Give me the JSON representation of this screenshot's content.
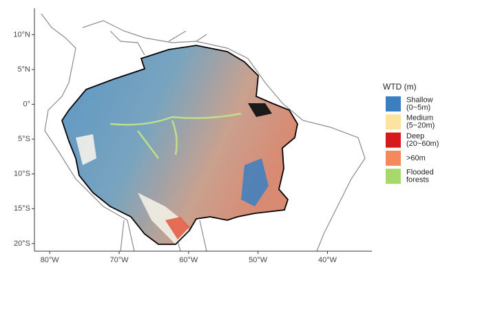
{
  "chart_data": {
    "type": "map",
    "xlim": [
      -82.2,
      -33.6
    ],
    "ylim": [
      -21.1,
      13.8
    ],
    "xticks": [
      {
        "value": -80,
        "label": "80°W"
      },
      {
        "value": -70,
        "label": "70°W"
      },
      {
        "value": -60,
        "label": "60°W"
      },
      {
        "value": -50,
        "label": "50°W"
      },
      {
        "value": -40,
        "label": "40°W"
      }
    ],
    "yticks": [
      {
        "value": -20,
        "label": "20°S"
      },
      {
        "value": -15,
        "label": "15°S"
      },
      {
        "value": -10,
        "label": "10°S"
      },
      {
        "value": -5,
        "label": "5°S"
      },
      {
        "value": 0,
        "label": "0°"
      },
      {
        "value": 5,
        "label": "5°N"
      },
      {
        "value": 10,
        "label": "10°N"
      }
    ],
    "legend": {
      "title": "WTD (m)",
      "items": [
        {
          "label": [
            "Shallow",
            "(0~5m)"
          ],
          "color": "#3b7fc1"
        },
        {
          "label": [
            "Medium",
            "(5~20m)"
          ],
          "color": "#fde3a0"
        },
        {
          "label": [
            "Deep",
            "(20~60m)"
          ],
          "color": "#d7191c"
        },
        {
          "label": [
            ">60m"
          ],
          "color": "#f48a5c"
        },
        {
          "label": [
            "Flooded",
            "forests"
          ],
          "color": "#a6d96a"
        }
      ]
    }
  }
}
